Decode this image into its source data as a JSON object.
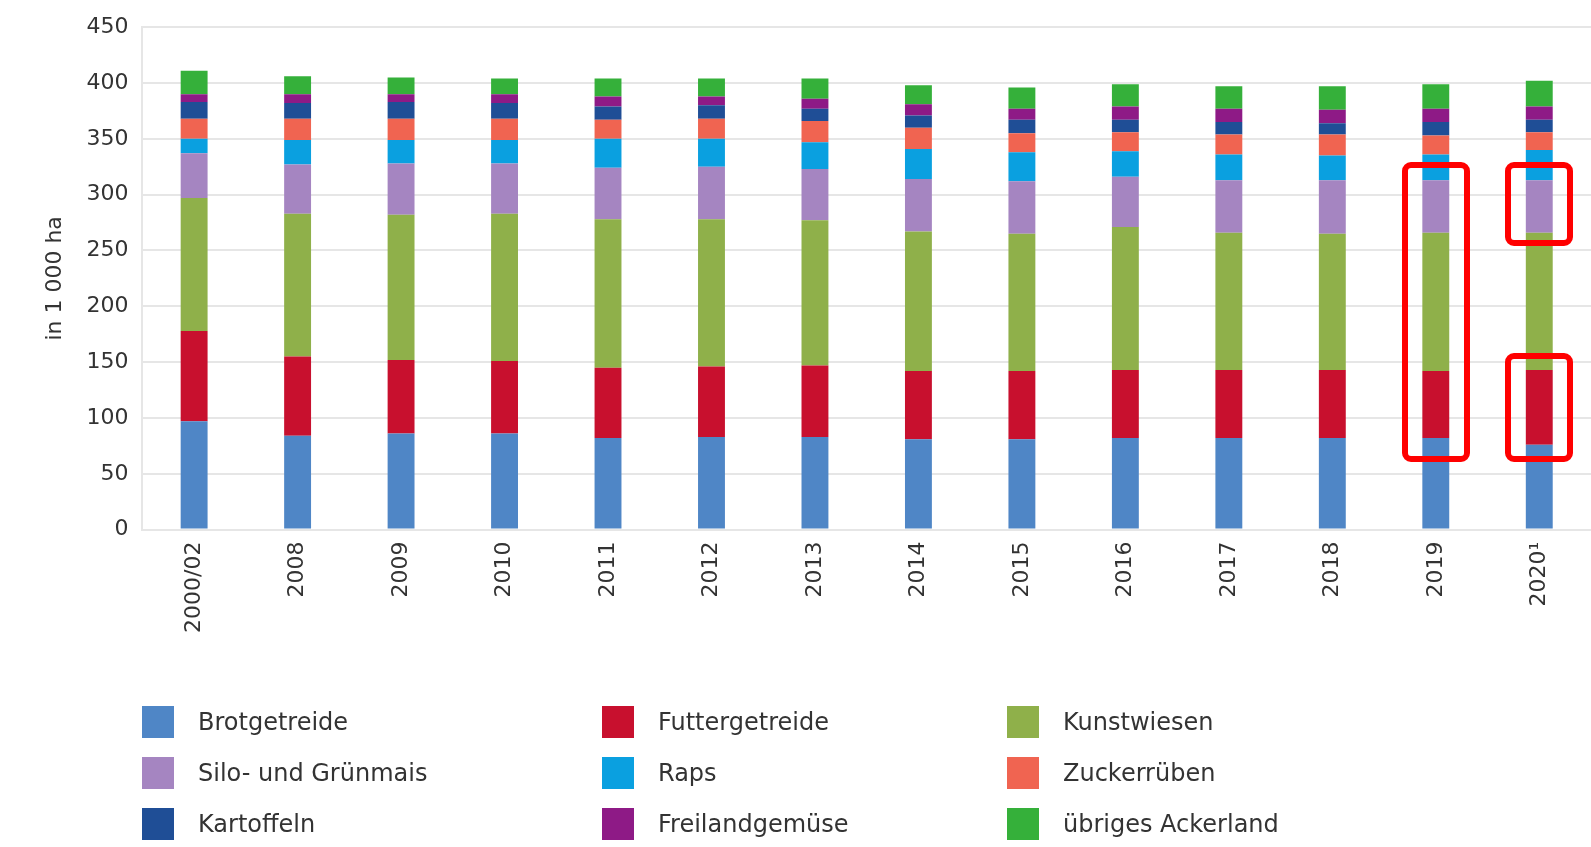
{
  "chart_data": {
    "type": "bar",
    "stacked": true,
    "ylabel": "in 1 000 ha",
    "categories": [
      "2000/02",
      "2008",
      "2009",
      "2010",
      "2011",
      "2012",
      "2013",
      "2014",
      "2015",
      "2016",
      "2017",
      "2018",
      "2019",
      "2020¹"
    ],
    "ylim": [
      0,
      450
    ],
    "yticks": [
      0,
      50,
      100,
      150,
      200,
      250,
      300,
      350,
      400,
      450
    ],
    "grid": "y",
    "legend": "bottom",
    "series": [
      {
        "name": "Brotgetreide",
        "color": "#4f86c6",
        "values": [
          97,
          84,
          86,
          86,
          82,
          83,
          83,
          81,
          81,
          82,
          82,
          82,
          82,
          76
        ]
      },
      {
        "name": "Futtergetreide",
        "color": "#c8102e",
        "values": [
          81,
          71,
          66,
          65,
          63,
          63,
          64,
          61,
          61,
          61,
          61,
          61,
          60,
          67
        ]
      },
      {
        "name": "Kunstwiesen",
        "color": "#8fb04a",
        "values": [
          119,
          128,
          130,
          132,
          133,
          132,
          130,
          125,
          123,
          128,
          123,
          122,
          124,
          123
        ]
      },
      {
        "name": "Silo- und Grünmais",
        "color": "#a585c1",
        "values": [
          40,
          44,
          46,
          45,
          46,
          47,
          46,
          47,
          47,
          45,
          47,
          48,
          47,
          47
        ]
      },
      {
        "name": "Raps",
        "color": "#0aa0e0",
        "values": [
          13,
          22,
          21,
          21,
          26,
          25,
          24,
          27,
          26,
          23,
          23,
          22,
          23,
          27
        ]
      },
      {
        "name": "Zuckerrüben",
        "color": "#f06451",
        "values": [
          18,
          19,
          19,
          19,
          17,
          18,
          19,
          19,
          17,
          17,
          18,
          19,
          17,
          16
        ]
      },
      {
        "name": "Kartoffeln",
        "color": "#1f4e96",
        "values": [
          15,
          14,
          15,
          14,
          12,
          12,
          11,
          11,
          12,
          11,
          11,
          10,
          12,
          11
        ]
      },
      {
        "name": "Freilandgemüse",
        "color": "#8e1a86",
        "values": [
          7,
          8,
          7,
          8,
          9,
          8,
          9,
          10,
          10,
          12,
          12,
          12,
          12,
          12
        ]
      },
      {
        "name": "übriges Ackerland",
        "color": "#35b03a",
        "values": [
          21,
          16,
          15,
          14,
          16,
          16,
          18,
          17,
          19,
          20,
          20,
          21,
          22,
          23
        ]
      }
    ]
  }
}
